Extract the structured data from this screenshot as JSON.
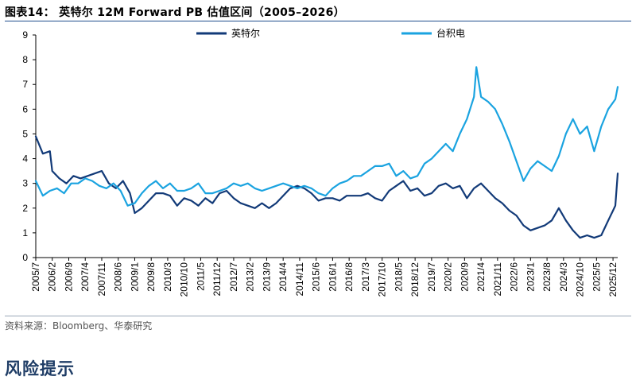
{
  "header": {
    "title": "图表14：  英特尔 12M Forward PB 估值区间（2005–2026）"
  },
  "footer": {
    "source": "资料来源：Bloomberg、华泰研究",
    "section_title": "风险提示"
  },
  "colors": {
    "intel": "#123a78",
    "tsmc": "#1aa3e0",
    "title_rule": "#1f4e8c"
  },
  "chart_data": {
    "type": "line",
    "title": "英特尔 12M Forward PB 估值区间（2005–2026）",
    "ylim": [
      0,
      9
    ],
    "yticks": [
      0,
      1,
      2,
      3,
      4,
      5,
      6,
      7,
      8,
      9
    ],
    "xlim": [
      "2005-07",
      "2026-02"
    ],
    "xticks": [
      "2005/7",
      "2006/2",
      "2006/9",
      "2007/4",
      "2007/11",
      "2008/6",
      "2009/1",
      "2009/8",
      "2010/3",
      "2010/10",
      "2011/5",
      "2011/12",
      "2012/7",
      "2013/2",
      "2013/9",
      "2014/4",
      "2014/11",
      "2015/6",
      "2016/1",
      "2016/8",
      "2017/3",
      "2017/10",
      "2018/5",
      "2018/12",
      "2019/7",
      "2020/2",
      "2020/9",
      "2021/4",
      "2021/11",
      "2022/6",
      "2023/1",
      "2023/8",
      "2024/3",
      "2024/10",
      "2025/5",
      "2025/12"
    ],
    "legend_position": "top",
    "grid": false,
    "series": [
      {
        "name": "英特尔",
        "color": "#123a78",
        "x": [
          "2005-07",
          "2005-10",
          "2006-01",
          "2006-02",
          "2006-05",
          "2006-08",
          "2006-11",
          "2007-02",
          "2007-05",
          "2007-08",
          "2007-11",
          "2008-02",
          "2008-05",
          "2008-08",
          "2008-11",
          "2009-01",
          "2009-04",
          "2009-07",
          "2009-10",
          "2010-01",
          "2010-04",
          "2010-07",
          "2010-10",
          "2011-01",
          "2011-04",
          "2011-07",
          "2011-10",
          "2012-01",
          "2012-04",
          "2012-07",
          "2012-10",
          "2013-01",
          "2013-04",
          "2013-07",
          "2013-10",
          "2014-01",
          "2014-04",
          "2014-07",
          "2014-10",
          "2015-01",
          "2015-04",
          "2015-07",
          "2015-10",
          "2016-01",
          "2016-04",
          "2016-07",
          "2016-10",
          "2017-01",
          "2017-04",
          "2017-07",
          "2017-10",
          "2018-01",
          "2018-04",
          "2018-07",
          "2018-10",
          "2019-01",
          "2019-04",
          "2019-07",
          "2019-10",
          "2020-01",
          "2020-04",
          "2020-07",
          "2020-10",
          "2021-01",
          "2021-04",
          "2021-07",
          "2021-10",
          "2022-01",
          "2022-04",
          "2022-07",
          "2022-10",
          "2023-01",
          "2023-04",
          "2023-07",
          "2023-10",
          "2024-01",
          "2024-04",
          "2024-07",
          "2024-10",
          "2025-01",
          "2025-04",
          "2025-07",
          "2025-10",
          "2025-12",
          "2026-01",
          "2026-02"
        ],
        "y": [
          4.9,
          4.2,
          4.3,
          3.5,
          3.2,
          3.0,
          3.3,
          3.2,
          3.3,
          3.4,
          3.5,
          3.0,
          2.8,
          3.1,
          2.6,
          1.8,
          2.0,
          2.3,
          2.6,
          2.6,
          2.5,
          2.1,
          2.4,
          2.3,
          2.1,
          2.4,
          2.2,
          2.6,
          2.7,
          2.4,
          2.2,
          2.1,
          2.0,
          2.2,
          2.0,
          2.2,
          2.5,
          2.8,
          2.9,
          2.8,
          2.6,
          2.3,
          2.4,
          2.4,
          2.3,
          2.5,
          2.5,
          2.5,
          2.6,
          2.4,
          2.3,
          2.7,
          2.9,
          3.1,
          2.7,
          2.8,
          2.5,
          2.6,
          2.9,
          3.0,
          2.8,
          2.9,
          2.4,
          2.8,
          3.0,
          2.7,
          2.4,
          2.2,
          1.9,
          1.7,
          1.3,
          1.1,
          1.2,
          1.3,
          1.5,
          2.0,
          1.5,
          1.1,
          0.8,
          0.9,
          0.8,
          0.9,
          1.5,
          1.9,
          2.1,
          3.4
        ]
      },
      {
        "name": "台积电",
        "color": "#1aa3e0",
        "x": [
          "2005-07",
          "2005-10",
          "2006-01",
          "2006-04",
          "2006-07",
          "2006-10",
          "2007-01",
          "2007-04",
          "2007-07",
          "2007-10",
          "2008-01",
          "2008-04",
          "2008-07",
          "2008-10",
          "2009-01",
          "2009-04",
          "2009-07",
          "2009-10",
          "2010-01",
          "2010-04",
          "2010-07",
          "2010-10",
          "2011-01",
          "2011-04",
          "2011-07",
          "2011-10",
          "2012-01",
          "2012-04",
          "2012-07",
          "2012-10",
          "2013-01",
          "2013-04",
          "2013-07",
          "2013-10",
          "2014-01",
          "2014-04",
          "2014-07",
          "2014-10",
          "2015-01",
          "2015-04",
          "2015-07",
          "2015-10",
          "2016-01",
          "2016-04",
          "2016-07",
          "2016-10",
          "2017-01",
          "2017-04",
          "2017-07",
          "2017-10",
          "2018-01",
          "2018-04",
          "2018-07",
          "2018-10",
          "2019-01",
          "2019-04",
          "2019-07",
          "2019-10",
          "2020-01",
          "2020-04",
          "2020-07",
          "2020-10",
          "2021-01",
          "2021-02",
          "2021-04",
          "2021-07",
          "2021-10",
          "2022-01",
          "2022-04",
          "2022-07",
          "2022-10",
          "2023-01",
          "2023-04",
          "2023-07",
          "2023-10",
          "2024-01",
          "2024-04",
          "2024-07",
          "2024-10",
          "2025-01",
          "2025-04",
          "2025-07",
          "2025-10",
          "2026-01",
          "2026-02"
        ],
        "y": [
          3.1,
          2.5,
          2.7,
          2.8,
          2.6,
          3.0,
          3.0,
          3.2,
          3.1,
          2.9,
          2.8,
          3.0,
          2.7,
          2.1,
          2.2,
          2.6,
          2.9,
          3.1,
          2.8,
          3.0,
          2.7,
          2.7,
          2.8,
          3.0,
          2.6,
          2.6,
          2.7,
          2.8,
          3.0,
          2.9,
          3.0,
          2.8,
          2.7,
          2.8,
          2.9,
          3.0,
          2.9,
          2.8,
          2.9,
          2.8,
          2.6,
          2.5,
          2.8,
          3.0,
          3.1,
          3.3,
          3.3,
          3.5,
          3.7,
          3.7,
          3.8,
          3.3,
          3.5,
          3.2,
          3.3,
          3.8,
          4.0,
          4.3,
          4.6,
          4.3,
          5.0,
          5.6,
          6.5,
          7.7,
          6.5,
          6.3,
          6.0,
          5.4,
          4.7,
          3.9,
          3.1,
          3.6,
          3.9,
          3.7,
          3.5,
          4.1,
          5.0,
          5.6,
          5.0,
          5.3,
          4.3,
          5.3,
          6.0,
          6.4,
          6.9
        ]
      }
    ]
  }
}
